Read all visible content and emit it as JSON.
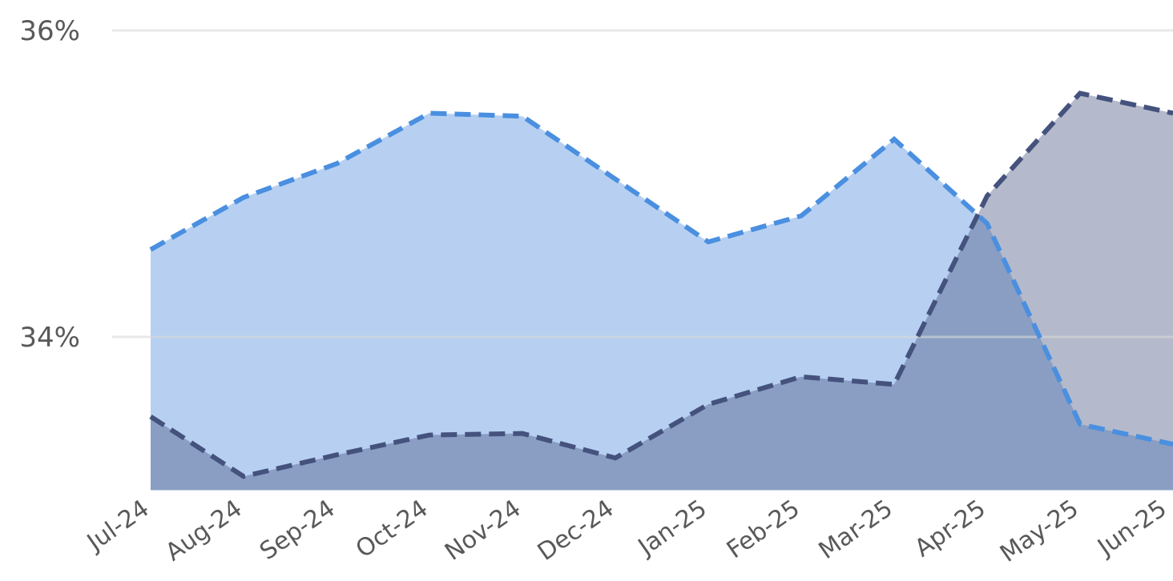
{
  "chart_data": {
    "type": "area",
    "categories": [
      "Jul-24",
      "Aug-24",
      "Sep-24",
      "Oct-24",
      "Nov-24",
      "Dec-24",
      "Jan-25",
      "Feb-25",
      "Mar-25",
      "Apr-25",
      "May-25",
      "Jun-25"
    ],
    "series": [
      {
        "color": "#4a8fe0",
        "fill": "#b7d0f1",
        "values": [
          34.57,
          34.91,
          35.13,
          35.46,
          35.44,
          35.03,
          34.62,
          34.79,
          35.29,
          34.74,
          33.43,
          33.3
        ]
      },
      {
        "color": "#44527d",
        "fill": "#44527d",
        "values": [
          33.48,
          33.09,
          33.23,
          33.36,
          33.37,
          33.21,
          33.56,
          33.74,
          33.69,
          34.92,
          35.59,
          35.46
        ]
      }
    ],
    "ylim": [
      33,
      36
    ],
    "yticks": [
      {
        "value": 34,
        "label": "34%"
      },
      {
        "value": 36,
        "label": "36%"
      }
    ],
    "grid": true
  }
}
